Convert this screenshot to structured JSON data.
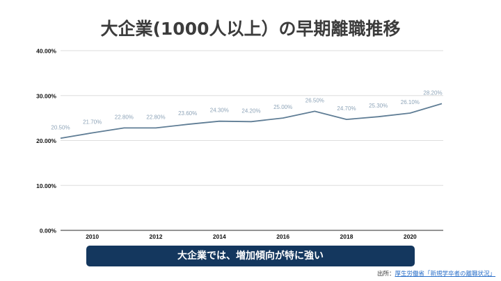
{
  "chart_data": {
    "type": "line",
    "title": "大企業(1000人以上）の早期離職推移",
    "xlabel": "",
    "ylabel": "",
    "x": [
      2009,
      2010,
      2011,
      2012,
      2013,
      2014,
      2015,
      2016,
      2017,
      2018,
      2019,
      2020,
      2021
    ],
    "series": [
      {
        "name": "大企業(1000人以上)",
        "values": [
          20.5,
          21.7,
          22.8,
          22.8,
          23.6,
          24.3,
          24.2,
          25.0,
          26.5,
          24.7,
          25.3,
          26.1,
          28.2
        ],
        "data_labels": [
          "20.50%",
          "21.70%",
          "22.80%",
          "22.80%",
          "23.60%",
          "24.30%",
          "24.20%",
          "25.00%",
          "26.50%",
          "24.70%",
          "25.30%",
          "26.10%",
          "28.20%"
        ]
      }
    ],
    "ylim": [
      0,
      40
    ],
    "xlim": [
      2009,
      2021
    ],
    "y_ticks": [
      0,
      10,
      20,
      30,
      40
    ],
    "y_tick_labels": [
      "0.00%",
      "10.00%",
      "20.00%",
      "30.00%",
      "40.00%"
    ],
    "x_ticks": [
      2010,
      2012,
      2014,
      2016,
      2018,
      2020
    ],
    "x_tick_labels": [
      "2010",
      "2012",
      "2014",
      "2016",
      "2018",
      "2020"
    ],
    "grid": true,
    "legend": "none",
    "colors": {
      "line": "#5f7d95",
      "data_label": "#8ea4b8",
      "grid": "#dddddd",
      "axis": "#555555"
    }
  },
  "callout": {
    "text": "大企業では、増加傾向が特に強い",
    "color": "#14375e"
  },
  "source": {
    "prefix": "出所：",
    "link_text": "厚生労働省「新規学卒者の離職状況」"
  }
}
